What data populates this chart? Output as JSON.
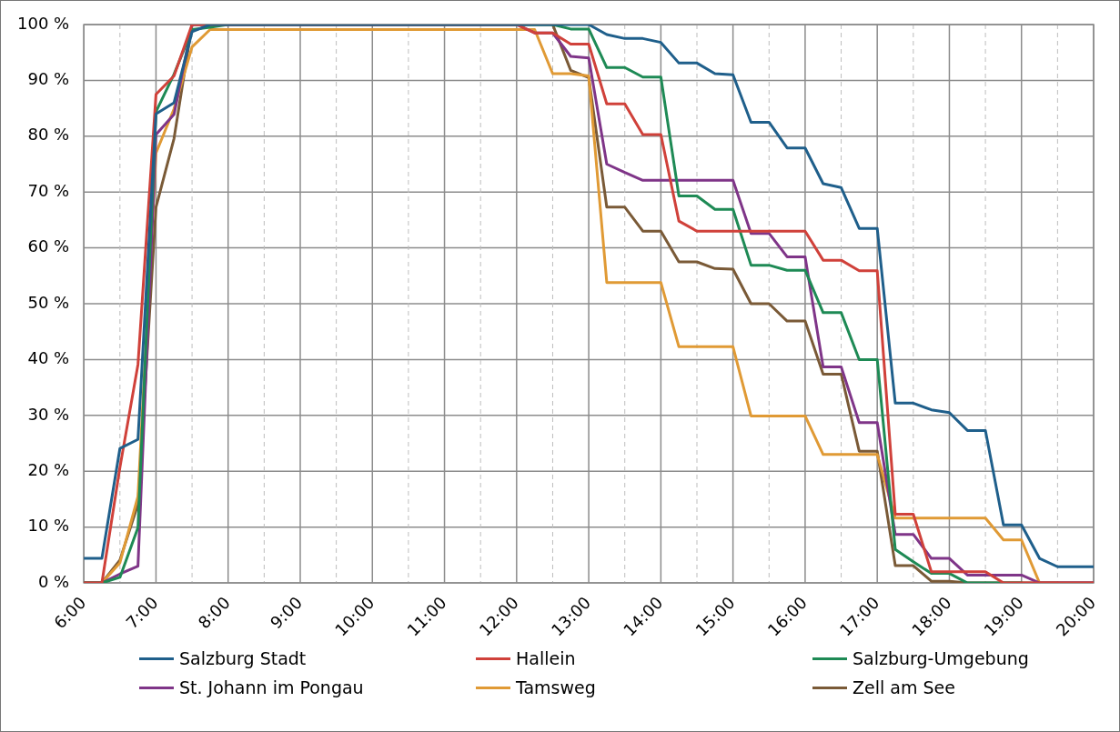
{
  "chart_data": {
    "type": "line",
    "x": [
      6,
      6.25,
      6.5,
      6.75,
      7,
      7.25,
      7.5,
      7.75,
      8,
      8.25,
      8.5,
      8.75,
      9,
      9.25,
      9.5,
      9.75,
      10,
      10.25,
      10.5,
      10.75,
      11,
      11.25,
      11.5,
      11.75,
      12,
      12.25,
      12.5,
      12.75,
      13,
      13.25,
      13.5,
      13.75,
      14,
      14.25,
      14.5,
      14.75,
      15,
      15.25,
      15.5,
      15.75,
      16,
      16.25,
      16.5,
      16.75,
      17,
      17.25,
      17.5,
      17.75,
      18,
      18.25,
      18.5,
      18.75,
      19,
      19.25,
      19.5,
      19.75,
      20
    ],
    "series": [
      {
        "name": "Salzburg Stadt",
        "color": "#1f5f8b",
        "values": [
          4.4,
          4.4,
          24.1,
          25.7,
          84,
          86,
          98.7,
          100,
          100,
          100,
          100,
          100,
          100,
          100,
          100,
          100,
          100,
          100,
          100,
          100,
          100,
          100,
          100,
          100,
          100,
          100,
          100,
          100,
          100,
          98.2,
          97.5,
          97.5,
          96.8,
          93.1,
          93.1,
          91.2,
          91,
          82.5,
          82.5,
          77.9,
          77.9,
          71.5,
          70.8,
          63.5,
          63.5,
          32.2,
          32.2,
          31,
          30.5,
          27.3,
          27.3,
          10.4,
          10.4,
          4.4,
          2.9,
          2.9,
          2.9
        ]
      },
      {
        "name": "Hallein",
        "color": "#d0413a",
        "values": [
          0,
          0,
          20.7,
          39.1,
          87.5,
          90.8,
          100,
          100,
          100,
          100,
          100,
          100,
          100,
          100,
          100,
          100,
          100,
          100,
          100,
          100,
          100,
          100,
          100,
          100,
          100,
          98.5,
          98.5,
          96.5,
          96.5,
          85.8,
          85.8,
          80.3,
          80.3,
          64.8,
          63,
          63,
          63,
          63,
          63,
          63,
          63,
          57.8,
          57.8,
          55.9,
          55.9,
          12.3,
          12.3,
          2,
          2,
          2,
          2,
          0,
          0,
          0,
          0,
          0,
          0
        ]
      },
      {
        "name": "Salzburg-Umgebung",
        "color": "#1e8a55",
        "values": [
          0,
          0,
          1,
          9.9,
          84.4,
          91.1,
          99.1,
          99.5,
          100,
          100,
          100,
          100,
          100,
          100,
          100,
          100,
          100,
          100,
          100,
          100,
          100,
          100,
          100,
          100,
          100,
          100,
          100,
          99.2,
          99.2,
          92.3,
          92.3,
          90.6,
          90.6,
          69.3,
          69.3,
          66.9,
          66.9,
          56.9,
          56.9,
          56,
          56,
          48.4,
          48.4,
          40,
          40,
          6,
          3.8,
          1.7,
          1.7,
          0,
          0,
          0,
          0,
          null,
          null,
          null,
          null
        ]
      },
      {
        "name": "St. Johann im Pongau",
        "color": "#7f3588",
        "values": [
          0,
          0,
          1.6,
          3,
          80.3,
          83.9,
          100,
          100,
          100,
          100,
          100,
          100,
          100,
          100,
          100,
          100,
          100,
          100,
          100,
          100,
          100,
          100,
          100,
          100,
          100,
          98.5,
          98.5,
          94.3,
          94,
          75,
          73.5,
          72.1,
          72.1,
          72.1,
          72.1,
          72.1,
          72.1,
          62.6,
          62.6,
          58.4,
          58.4,
          38.7,
          38.7,
          28.7,
          28.7,
          8.7,
          8.7,
          4.4,
          4.4,
          1.4,
          1.4,
          1.4,
          1.4,
          0,
          0,
          0,
          0
        ]
      },
      {
        "name": "Tamsweg",
        "color": "#e09a35",
        "values": [
          0,
          0,
          3.6,
          15.5,
          77,
          84.9,
          96,
          99.1,
          99.1,
          99.1,
          99.1,
          99.1,
          99.1,
          99.1,
          99.1,
          99.1,
          99.1,
          99.1,
          99.1,
          99.1,
          99.1,
          99.1,
          99.1,
          99.1,
          99.1,
          99.1,
          91.2,
          91.2,
          90.8,
          53.8,
          53.8,
          53.8,
          53.8,
          42.3,
          42.3,
          42.3,
          42.3,
          29.9,
          29.9,
          29.9,
          29.9,
          23,
          23,
          23,
          23,
          11.6,
          11.6,
          11.6,
          11.6,
          11.6,
          11.6,
          7.7,
          7.7,
          0,
          0,
          null,
          null
        ]
      },
      {
        "name": "Zell am See",
        "color": "#7a5a37",
        "values": [
          0,
          0,
          4.1,
          14.1,
          67.3,
          79.6,
          100,
          100,
          100,
          100,
          100,
          100,
          100,
          100,
          100,
          100,
          100,
          100,
          100,
          100,
          100,
          100,
          100,
          100,
          100,
          100,
          100,
          91.8,
          90.5,
          67.3,
          67.3,
          63,
          63,
          57.5,
          57.5,
          56.3,
          56.2,
          50,
          50,
          46.9,
          46.9,
          37.4,
          37.4,
          23.6,
          23.6,
          3.1,
          3.1,
          0.3,
          0.3,
          0,
          0,
          0,
          0,
          0,
          0,
          0,
          0
        ]
      }
    ],
    "xlim": [
      6,
      20
    ],
    "xticks": [
      {
        "value": 6,
        "label": "6:00"
      },
      {
        "value": 6.5,
        "label": null
      },
      {
        "value": 7,
        "label": "7:00"
      },
      {
        "value": 7.5,
        "label": null
      },
      {
        "value": 8,
        "label": "8:00"
      },
      {
        "value": 8.5,
        "label": null
      },
      {
        "value": 9,
        "label": "9:00"
      },
      {
        "value": 9.5,
        "label": null
      },
      {
        "value": 10,
        "label": "10:00"
      },
      {
        "value": 10.5,
        "label": null
      },
      {
        "value": 11,
        "label": "11:00"
      },
      {
        "value": 11.5,
        "label": null
      },
      {
        "value": 12,
        "label": "12:00"
      },
      {
        "value": 12.5,
        "label": null
      },
      {
        "value": 13,
        "label": "13:00"
      },
      {
        "value": 13.5,
        "label": null
      },
      {
        "value": 14,
        "label": "14:00"
      },
      {
        "value": 14.5,
        "label": null
      },
      {
        "value": 15,
        "label": "15:00"
      },
      {
        "value": 15.5,
        "label": null
      },
      {
        "value": 16,
        "label": "16:00"
      },
      {
        "value": 16.5,
        "label": null
      },
      {
        "value": 17,
        "label": "17:00"
      },
      {
        "value": 17.5,
        "label": null
      },
      {
        "value": 18,
        "label": "18:00"
      },
      {
        "value": 18.5,
        "label": null
      },
      {
        "value": 19,
        "label": "19:00"
      },
      {
        "value": 19.5,
        "label": null
      },
      {
        "value": 20,
        "label": "20:00"
      }
    ],
    "ylim": [
      0,
      100
    ],
    "yticks": [
      {
        "value": 0,
        "label": "0 %"
      },
      {
        "value": 10,
        "label": "10 %"
      },
      {
        "value": 20,
        "label": "20 %"
      },
      {
        "value": 30,
        "label": "30 %"
      },
      {
        "value": 40,
        "label": "40 %"
      },
      {
        "value": 50,
        "label": "50 %"
      },
      {
        "value": 60,
        "label": "60 %"
      },
      {
        "value": 70,
        "label": "70 %"
      },
      {
        "value": 80,
        "label": "80 %"
      },
      {
        "value": 90,
        "label": "90 %"
      },
      {
        "value": 100,
        "label": "100 %"
      }
    ],
    "grid": true,
    "legend": "bottom"
  }
}
